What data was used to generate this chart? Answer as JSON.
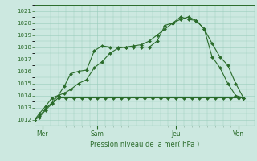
{
  "background_color": "#cce8e0",
  "grid_color": "#99ccbb",
  "line_color": "#2a6b2a",
  "xlabel": "Pression niveau de la mer( hPa )",
  "ylim": [
    1011.5,
    1021.5
  ],
  "yticks": [
    1012,
    1013,
    1014,
    1015,
    1016,
    1017,
    1018,
    1019,
    1020,
    1021
  ],
  "xlim": [
    0,
    14
  ],
  "day_positions": [
    0.5,
    4,
    9,
    13
  ],
  "day_labels": [
    "Mer",
    "Sam",
    "Jeu",
    "Ven"
  ],
  "series": [
    {
      "x": [
        0,
        0.3,
        0.7,
        1.1,
        1.5,
        1.9,
        2.3,
        2.8,
        3.3,
        3.8,
        4.3,
        4.8,
        5.3,
        5.8,
        6.3,
        6.8,
        7.3,
        7.8,
        8.3,
        8.8,
        9.3,
        9.8,
        10.3,
        10.8,
        11.3,
        11.8,
        12.3,
        12.8,
        13.3
      ],
      "y": [
        1012.0,
        1012.5,
        1013.1,
        1013.8,
        1014.0,
        1014.8,
        1015.8,
        1016.0,
        1016.1,
        1017.7,
        1018.1,
        1018.0,
        1018.0,
        1018.0,
        1018.0,
        1018.0,
        1018.0,
        1018.5,
        1019.8,
        1020.0,
        1020.5,
        1020.3,
        1020.2,
        1019.5,
        1018.3,
        1017.2,
        1016.5,
        1015.0,
        1013.8
      ]
    },
    {
      "x": [
        0,
        0.3,
        0.7,
        1.1,
        1.5,
        1.9,
        2.3,
        2.8,
        3.3,
        3.8,
        4.3,
        4.8,
        5.3,
        5.8,
        6.3,
        6.8,
        7.3,
        7.8,
        8.3,
        8.8,
        9.3,
        9.8,
        10.3,
        10.8,
        11.3,
        11.8,
        12.3,
        12.8,
        13.3
      ],
      "y": [
        1012.0,
        1012.3,
        1012.9,
        1013.4,
        1014.0,
        1014.2,
        1014.5,
        1015.0,
        1015.3,
        1016.3,
        1016.8,
        1017.5,
        1017.9,
        1018.0,
        1018.1,
        1018.2,
        1018.5,
        1019.0,
        1019.5,
        1020.0,
        1020.3,
        1020.5,
        1020.2,
        1019.5,
        1017.2,
        1016.3,
        1015.0,
        1014.0,
        1013.8
      ]
    },
    {
      "x": [
        0,
        0.3,
        0.7,
        1.1,
        1.5,
        2.0,
        2.5,
        3.0,
        3.5,
        4.0,
        4.5,
        5.0,
        5.5,
        6.0,
        6.5,
        7.0,
        7.5,
        8.0,
        8.5,
        9.0,
        9.5,
        10.0,
        10.5,
        11.0,
        11.5,
        12.0,
        12.5,
        13.0,
        13.3
      ],
      "y": [
        1012.0,
        1012.2,
        1012.8,
        1013.3,
        1013.8,
        1013.8,
        1013.8,
        1013.8,
        1013.8,
        1013.8,
        1013.8,
        1013.8,
        1013.8,
        1013.8,
        1013.8,
        1013.8,
        1013.8,
        1013.8,
        1013.8,
        1013.8,
        1013.8,
        1013.8,
        1013.8,
        1013.8,
        1013.8,
        1013.8,
        1013.8,
        1013.8,
        1013.8
      ]
    }
  ]
}
